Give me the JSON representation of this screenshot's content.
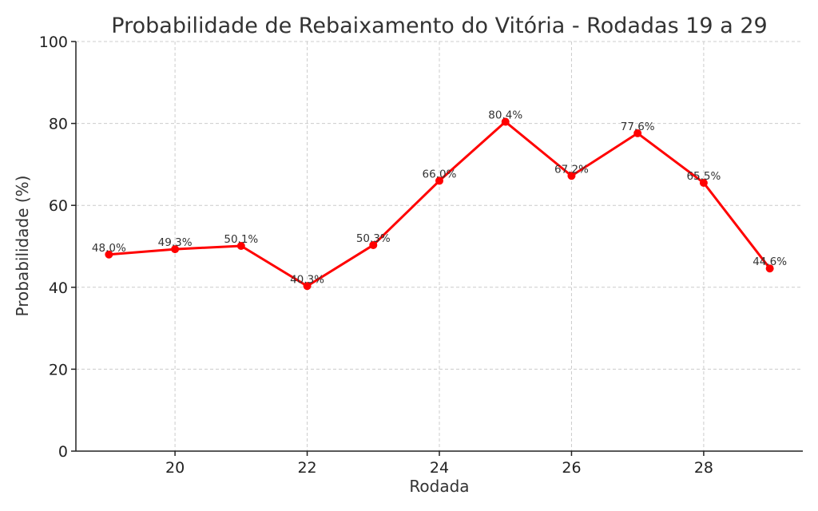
{
  "chart_data": {
    "type": "line",
    "title": "Probabilidade de Rebaixamento do Vitória - Rodadas 19 a 29",
    "xlabel": "Rodada",
    "ylabel": "Probabilidade (%)",
    "xlim": [
      18.5,
      29.5
    ],
    "ylim": [
      0,
      100
    ],
    "x_ticks": [
      20,
      22,
      24,
      26,
      28
    ],
    "y_ticks": [
      0,
      20,
      40,
      60,
      80,
      100
    ],
    "grid": true,
    "series": [
      {
        "color": "#ff0000",
        "x": [
          19,
          20,
          21,
          22,
          23,
          24,
          25,
          26,
          27,
          28,
          29
        ],
        "values": [
          48.0,
          49.3,
          50.1,
          40.3,
          50.3,
          66.0,
          80.4,
          67.2,
          77.6,
          65.5,
          44.6
        ],
        "labels": [
          "48.0%",
          "49.3%",
          "50.1%",
          "40.3%",
          "50.3%",
          "66.0%",
          "80.4%",
          "67.2%",
          "77.6%",
          "65.5%",
          "44.6%"
        ]
      }
    ]
  }
}
